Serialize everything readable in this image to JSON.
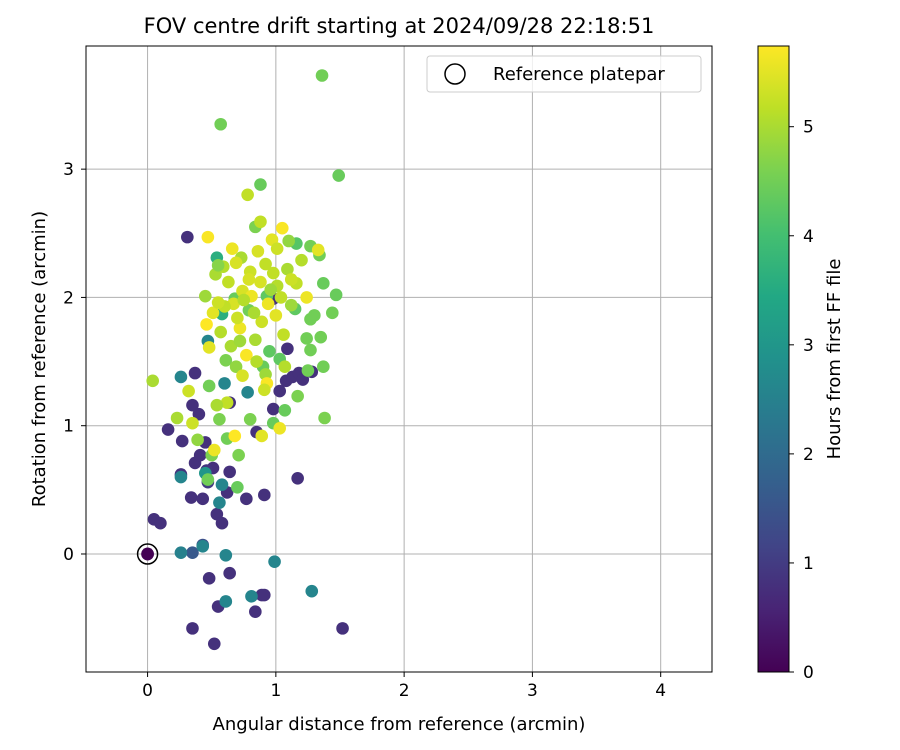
{
  "chart_data": {
    "type": "scatter",
    "title": "FOV centre drift starting at 2024/09/28 22:18:51",
    "xlabel": "Angular distance from reference (arcmin)",
    "ylabel": "Rotation from reference (arcmin)",
    "xlim": [
      -0.48,
      4.4
    ],
    "ylim": [
      -0.92,
      3.96
    ],
    "xticks": [
      0,
      1,
      2,
      3,
      4
    ],
    "yticks": [
      0,
      1,
      2,
      3
    ],
    "grid": true,
    "legend": {
      "placement": "top-right",
      "entries": [
        "Reference platepar"
      ]
    },
    "colorbar": {
      "label": "Hours from first FF file",
      "colormap": "viridis",
      "range": [
        0,
        5.74
      ],
      "ticks": [
        0,
        1,
        2,
        3,
        4,
        5
      ]
    },
    "reference_point": {
      "x": 0,
      "y": 0
    },
    "points": [
      [
        0.0,
        0.0,
        0.0
      ],
      [
        0.05,
        0.27,
        0.8
      ],
      [
        0.1,
        0.24,
        0.8
      ],
      [
        0.16,
        0.97,
        0.8
      ],
      [
        0.31,
        2.47,
        0.8
      ],
      [
        0.27,
        0.88,
        0.8
      ],
      [
        0.35,
        1.16,
        0.8
      ],
      [
        0.37,
        1.41,
        0.8
      ],
      [
        0.4,
        1.09,
        0.8
      ],
      [
        0.37,
        0.71,
        0.8
      ],
      [
        0.45,
        0.87,
        0.8
      ],
      [
        0.41,
        0.77,
        0.8
      ],
      [
        0.26,
        0.62,
        0.8
      ],
      [
        0.34,
        0.44,
        0.8
      ],
      [
        0.43,
        0.43,
        0.8
      ],
      [
        0.51,
        0.67,
        0.8
      ],
      [
        0.46,
        0.65,
        0.9
      ],
      [
        0.64,
        0.64,
        0.8
      ],
      [
        0.62,
        0.48,
        0.8
      ],
      [
        0.54,
        0.31,
        0.8
      ],
      [
        0.58,
        0.24,
        0.8
      ],
      [
        0.77,
        0.43,
        0.8
      ],
      [
        0.91,
        0.46,
        0.8
      ],
      [
        0.85,
        0.95,
        0.8
      ],
      [
        0.64,
        1.18,
        0.8
      ],
      [
        0.98,
        1.13,
        0.8
      ],
      [
        1.03,
        1.27,
        0.8
      ],
      [
        1.08,
        1.35,
        0.8
      ],
      [
        1.13,
        1.38,
        0.8
      ],
      [
        1.18,
        1.41,
        0.8
      ],
      [
        1.21,
        1.36,
        0.8
      ],
      [
        1.28,
        1.42,
        0.8
      ],
      [
        1.09,
        1.6,
        0.8
      ],
      [
        0.98,
        1.99,
        0.8
      ],
      [
        1.17,
        0.59,
        0.8
      ],
      [
        0.48,
        -0.19,
        0.8
      ],
      [
        0.64,
        -0.15,
        0.8
      ],
      [
        0.35,
        -0.58,
        0.8
      ],
      [
        0.55,
        -0.41,
        0.8
      ],
      [
        0.52,
        -0.7,
        0.8
      ],
      [
        0.84,
        -0.45,
        0.8
      ],
      [
        0.89,
        -0.32,
        0.8
      ],
      [
        0.91,
        -0.32,
        0.8
      ],
      [
        1.52,
        -0.58,
        0.8
      ],
      [
        0.43,
        0.07,
        1.4
      ],
      [
        0.35,
        0.01,
        1.6
      ],
      [
        0.47,
        0.56,
        1.0
      ],
      [
        0.26,
        0.01,
        2.5
      ],
      [
        0.43,
        0.06,
        2.6
      ],
      [
        0.61,
        -0.01,
        2.6
      ],
      [
        0.99,
        -0.06,
        2.6
      ],
      [
        1.28,
        -0.29,
        2.6
      ],
      [
        0.61,
        -0.37,
        2.6
      ],
      [
        0.81,
        -0.33,
        2.6
      ],
      [
        0.47,
        1.66,
        2.6
      ],
      [
        0.26,
        1.38,
        2.6
      ],
      [
        0.26,
        0.6,
        2.6
      ],
      [
        0.56,
        0.4,
        2.6
      ],
      [
        0.78,
        1.26,
        2.6
      ],
      [
        0.6,
        1.33,
        2.6
      ],
      [
        0.58,
        0.54,
        2.6
      ],
      [
        0.45,
        0.63,
        3.0
      ],
      [
        0.58,
        1.87,
        3.6
      ],
      [
        0.54,
        2.31,
        3.6
      ],
      [
        0.57,
        3.35,
        4.5
      ],
      [
        1.36,
        3.73,
        4.5
      ],
      [
        1.49,
        2.95,
        4.4
      ],
      [
        0.88,
        2.88,
        4.4
      ],
      [
        1.27,
        2.4,
        4.5
      ],
      [
        1.34,
        2.33,
        4.5
      ],
      [
        1.16,
        2.42,
        4.2
      ],
      [
        1.37,
        2.11,
        4.4
      ],
      [
        1.47,
        2.02,
        4.4
      ],
      [
        1.44,
        1.88,
        4.5
      ],
      [
        1.3,
        1.86,
        4.5
      ],
      [
        1.27,
        1.83,
        4.5
      ],
      [
        1.24,
        1.68,
        4.5
      ],
      [
        1.35,
        1.69,
        4.5
      ],
      [
        1.27,
        1.59,
        4.5
      ],
      [
        1.37,
        1.46,
        4.5
      ],
      [
        1.25,
        1.43,
        4.5
      ],
      [
        1.38,
        1.06,
        4.6
      ],
      [
        1.15,
        1.91,
        4.3
      ],
      [
        1.03,
        1.52,
        4.3
      ],
      [
        0.95,
        1.58,
        4.3
      ],
      [
        0.9,
        1.46,
        4.4
      ],
      [
        0.98,
        1.02,
        4.4
      ],
      [
        1.07,
        1.12,
        4.4
      ],
      [
        0.8,
        1.05,
        4.6
      ],
      [
        0.71,
        0.77,
        4.6
      ],
      [
        0.7,
        0.52,
        4.4
      ],
      [
        0.5,
        0.77,
        4.6
      ],
      [
        0.48,
        1.31,
        4.5
      ],
      [
        0.56,
        1.05,
        4.6
      ],
      [
        0.61,
        1.51,
        4.6
      ],
      [
        0.39,
        0.89,
        4.8
      ],
      [
        0.68,
        1.99,
        4.4
      ],
      [
        0.79,
        1.9,
        4.5
      ],
      [
        0.84,
        2.55,
        4.6
      ],
      [
        0.93,
        2.01,
        4.3
      ],
      [
        1.1,
        2.44,
        4.8
      ],
      [
        1.17,
        1.23,
        4.6
      ],
      [
        0.62,
        0.9,
        4.5
      ],
      [
        0.47,
        0.58,
        4.5
      ],
      [
        0.45,
        2.01,
        4.9
      ],
      [
        0.53,
        2.18,
        5.0
      ],
      [
        0.59,
        2.24,
        5.1
      ],
      [
        0.63,
        2.12,
        5.2
      ],
      [
        0.66,
        2.38,
        5.6
      ],
      [
        0.73,
        2.31,
        5.0
      ],
      [
        0.8,
        2.2,
        5.3
      ],
      [
        0.86,
        2.36,
        5.4
      ],
      [
        0.92,
        2.26,
        5.2
      ],
      [
        0.97,
        2.45,
        5.5
      ],
      [
        1.01,
        2.38,
        5.3
      ],
      [
        1.05,
        2.54,
        5.7
      ],
      [
        1.09,
        2.22,
        5.0
      ],
      [
        1.16,
        2.11,
        5.2
      ],
      [
        1.2,
        2.29,
        5.1
      ],
      [
        1.24,
        2.0,
        5.6
      ],
      [
        1.33,
        2.37,
        5.5
      ],
      [
        0.51,
        1.88,
        5.5
      ],
      [
        0.57,
        1.73,
        5.1
      ],
      [
        0.65,
        1.62,
        5.0
      ],
      [
        0.72,
        1.76,
        5.6
      ],
      [
        0.77,
        1.55,
        5.7
      ],
      [
        0.84,
        1.67,
        5.0
      ],
      [
        0.89,
        1.81,
        5.3
      ],
      [
        0.94,
        1.95,
        5.6
      ],
      [
        1.0,
        1.86,
        5.5
      ],
      [
        1.06,
        1.71,
        5.2
      ],
      [
        1.12,
        1.94,
        4.9
      ],
      [
        0.74,
        2.05,
        5.4
      ],
      [
        0.81,
        2.01,
        5.6
      ],
      [
        0.7,
        1.84,
        5.3
      ],
      [
        0.67,
        1.95,
        5.4
      ],
      [
        0.78,
        2.8,
        5.2
      ],
      [
        0.88,
        2.59,
        5.2
      ],
      [
        0.47,
        2.47,
        5.7
      ],
      [
        0.79,
        2.14,
        5.4
      ],
      [
        0.85,
        1.5,
        5.1
      ],
      [
        0.92,
        1.4,
        4.9
      ],
      [
        0.93,
        1.33,
        5.7
      ],
      [
        0.69,
        1.46,
        4.8
      ],
      [
        0.74,
        1.39,
        5.4
      ],
      [
        0.62,
        1.18,
        5.2
      ],
      [
        0.54,
        1.16,
        5.0
      ],
      [
        0.35,
        1.02,
        5.3
      ],
      [
        0.32,
        1.27,
        5.3
      ],
      [
        0.23,
        1.06,
        5.0
      ],
      [
        0.04,
        1.35,
        5.0
      ],
      [
        0.52,
        0.81,
        5.6
      ],
      [
        0.68,
        0.92,
        5.8
      ],
      [
        0.89,
        0.92,
        5.5
      ],
      [
        0.48,
        1.61,
        5.5
      ],
      [
        0.46,
        1.79,
        5.8
      ],
      [
        1.04,
        2.0,
        5.2
      ],
      [
        1.12,
        2.14,
        5.3
      ],
      [
        1.01,
        2.09,
        5.1
      ],
      [
        0.88,
        2.12,
        5.4
      ],
      [
        0.6,
        1.93,
        5.2
      ],
      [
        0.55,
        1.96,
        5.3
      ],
      [
        0.96,
        2.06,
        4.9
      ],
      [
        1.07,
        1.46,
        5.1
      ],
      [
        1.03,
        0.98,
        5.6
      ],
      [
        0.91,
        1.28,
        5.3
      ],
      [
        0.55,
        2.25,
        4.7
      ],
      [
        0.72,
        1.66,
        4.9
      ],
      [
        0.83,
        1.88,
        5.0
      ],
      [
        0.98,
        2.19,
        5.2
      ],
      [
        0.69,
        2.27,
        5.4
      ],
      [
        0.75,
        1.98,
        5.1
      ]
    ]
  }
}
